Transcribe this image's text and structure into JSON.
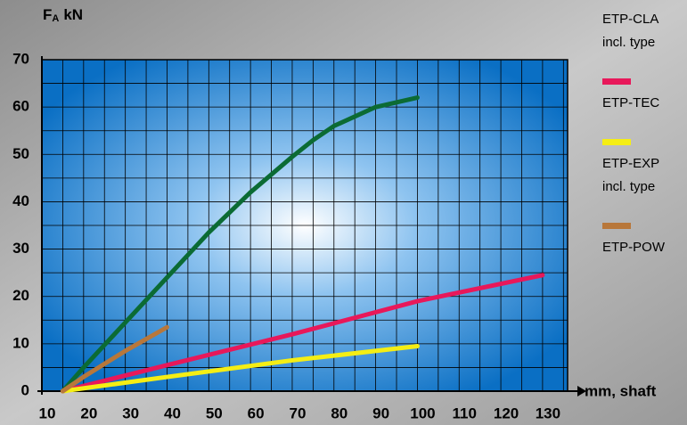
{
  "chart_data": {
    "type": "line",
    "ylabel": {
      "main": "F",
      "sub": "A",
      "unit": "kN"
    },
    "xlabel": "mm, shaft",
    "xlim": [
      10,
      136
    ],
    "ylim": [
      0,
      70
    ],
    "xticks": [
      10,
      20,
      30,
      40,
      50,
      60,
      70,
      80,
      90,
      100,
      110,
      120,
      130
    ],
    "yticks": [
      0,
      10,
      20,
      30,
      40,
      50,
      60,
      70
    ],
    "xticks_minor": [
      15,
      25,
      35,
      45,
      55,
      65,
      75,
      85,
      95,
      105,
      115,
      125,
      135
    ],
    "yticks_minor": [
      5,
      15,
      25,
      35,
      45,
      55,
      65
    ],
    "grid": true,
    "series": [
      {
        "name": "ETP-CLA",
        "note": "incl. type",
        "color": "#0b6b34",
        "x": [
          15,
          20,
          30,
          40,
          50,
          60,
          70,
          75,
          80,
          90,
          100
        ],
        "values": [
          0,
          5,
          14.5,
          24,
          33.5,
          42,
          49.5,
          53,
          56,
          60,
          62
        ]
      },
      {
        "name": "ETP-TEC",
        "color": "#e8185a",
        "x": [
          15,
          40,
          70,
          100,
          130
        ],
        "values": [
          0,
          5.5,
          12,
          19,
          24.5
        ]
      },
      {
        "name": "ETP-EXP",
        "note": "incl. type",
        "color": "#f5ee14",
        "x": [
          15,
          40,
          70,
          100
        ],
        "values": [
          0,
          3,
          6.5,
          9.5
        ]
      },
      {
        "name": "ETP-POW",
        "color": "#b8773a",
        "x": [
          15,
          20,
          30,
          40
        ],
        "values": [
          0,
          3,
          8.5,
          13.5
        ]
      }
    ]
  }
}
